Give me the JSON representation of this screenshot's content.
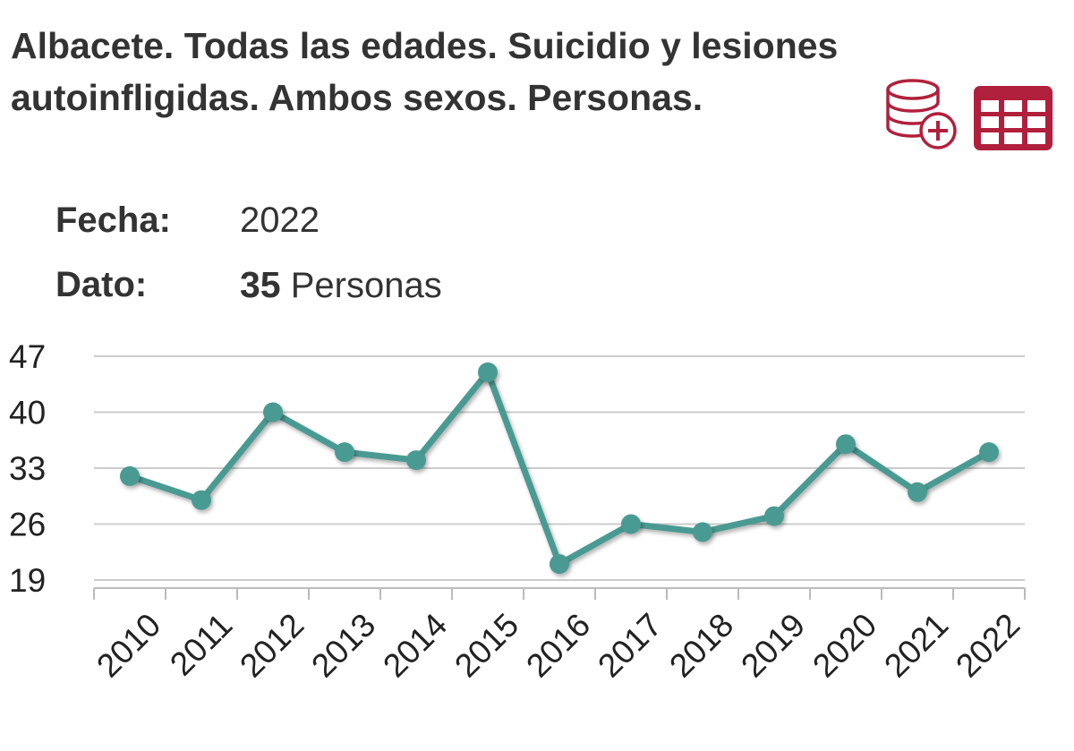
{
  "title": "Albacete. Todas las edades. Suicidio y lesiones autoinfligidas. Ambos sexos. Personas.",
  "icons": {
    "download": "database-plus-icon",
    "table": "table-icon"
  },
  "info": {
    "fecha_label": "Fecha:",
    "fecha_value": "2022",
    "dato_label": "Dato:",
    "dato_value": "35",
    "dato_unit": "Personas"
  },
  "colors": {
    "line": "#4a9a92",
    "accent": "#b0203c",
    "grid": "#cccccc"
  },
  "chart_data": {
    "type": "line",
    "categories": [
      "2010",
      "2011",
      "2012",
      "2013",
      "2014",
      "2015",
      "2016",
      "2017",
      "2018",
      "2019",
      "2020",
      "2021",
      "2022"
    ],
    "series": [
      {
        "values": [
          32,
          29,
          40,
          35,
          34,
          45,
          21,
          26,
          25,
          27,
          36,
          30,
          35
        ]
      }
    ],
    "yticks": [
      19,
      26,
      33,
      40,
      47
    ],
    "ylim": [
      19,
      47
    ],
    "grid": true,
    "legend": "none"
  }
}
